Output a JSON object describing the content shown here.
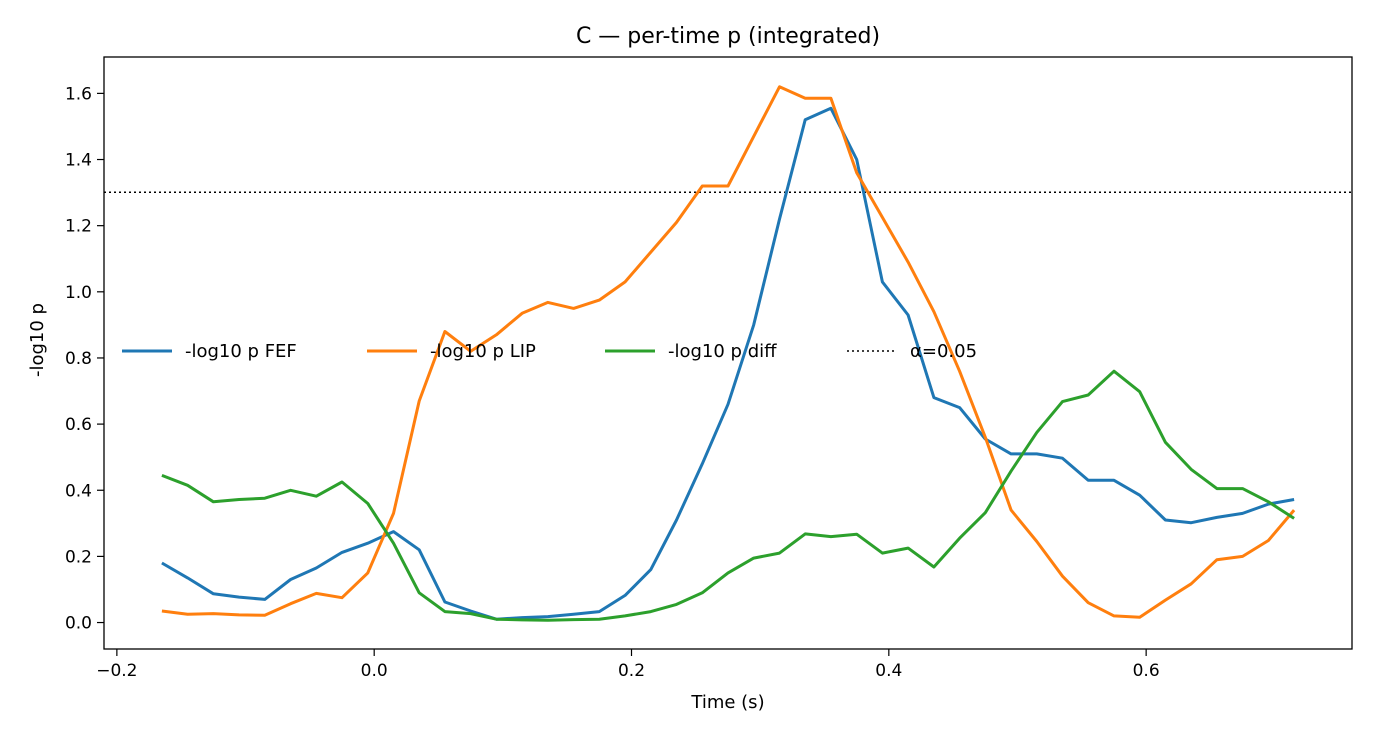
{
  "chart_data": {
    "type": "line",
    "title": "C — per-time p (integrated)",
    "xlabel": "Time (s)",
    "ylabel": "-log10 p",
    "xlim": [
      -0.21,
      0.76
    ],
    "ylim": [
      -0.08,
      1.71
    ],
    "xticks": [
      -0.2,
      0.0,
      0.2,
      0.4,
      0.6
    ],
    "xtick_labels": [
      "−0.2",
      "0.0",
      "0.2",
      "0.4",
      "0.6"
    ],
    "yticks": [
      0.0,
      0.2,
      0.4,
      0.6,
      0.8,
      1.0,
      1.2,
      1.4,
      1.6
    ],
    "ytick_labels": [
      "0.0",
      "0.2",
      "0.4",
      "0.6",
      "0.8",
      "1.0",
      "1.2",
      "1.4",
      "1.6"
    ],
    "grid": false,
    "legend_position": "center-left",
    "reference_line": {
      "y": 1.30103,
      "label": "α=0.05",
      "style": "dotted",
      "color": "#000000"
    },
    "x": [
      -0.165,
      -0.145,
      -0.125,
      -0.105,
      -0.085,
      -0.065,
      -0.045,
      -0.025,
      -0.005,
      0.015,
      0.035,
      0.055,
      0.075,
      0.095,
      0.115,
      0.135,
      0.155,
      0.175,
      0.195,
      0.215,
      0.235,
      0.255,
      0.275,
      0.295,
      0.315,
      0.335,
      0.355,
      0.375,
      0.395,
      0.415,
      0.435,
      0.455,
      0.475,
      0.495,
      0.515,
      0.535,
      0.555,
      0.575,
      0.595,
      0.615,
      0.635,
      0.655,
      0.675,
      0.695,
      0.715
    ],
    "series": [
      {
        "name": "-log10 p FEF",
        "color": "#1f77b4",
        "values": [
          0.18,
          0.135,
          0.087,
          0.077,
          0.07,
          0.13,
          0.165,
          0.212,
          0.24,
          0.275,
          0.22,
          0.062,
          0.035,
          0.01,
          0.015,
          0.018,
          0.025,
          0.033,
          0.082,
          0.16,
          0.31,
          0.48,
          0.66,
          0.9,
          1.22,
          1.52,
          1.555,
          1.4,
          1.03,
          0.93,
          0.68,
          0.65,
          0.555,
          0.51,
          0.51,
          0.497,
          0.43,
          0.43,
          0.385,
          0.31,
          0.302,
          0.318,
          0.33,
          0.358,
          0.372
        ]
      },
      {
        "name": "-log10 p LIP",
        "color": "#ff7f0e",
        "values": [
          0.035,
          0.025,
          0.027,
          0.023,
          0.022,
          0.057,
          0.088,
          0.075,
          0.15,
          0.33,
          0.67,
          0.88,
          0.82,
          0.87,
          0.935,
          0.968,
          0.95,
          0.975,
          1.03,
          1.12,
          1.21,
          1.32,
          1.32,
          1.47,
          1.62,
          1.585,
          1.585,
          1.36,
          1.225,
          1.09,
          0.94,
          0.76,
          0.56,
          0.34,
          0.245,
          0.14,
          0.06,
          0.02,
          0.016,
          0.068,
          0.117,
          0.19,
          0.2,
          0.248,
          0.34
        ]
      },
      {
        "name": "-log10 p diff",
        "color": "#2ca02c",
        "values": [
          0.445,
          0.415,
          0.365,
          0.372,
          0.376,
          0.4,
          0.382,
          0.425,
          0.36,
          0.24,
          0.09,
          0.033,
          0.027,
          0.01,
          0.008,
          0.007,
          0.009,
          0.01,
          0.02,
          0.033,
          0.055,
          0.09,
          0.15,
          0.195,
          0.21,
          0.268,
          0.26,
          0.267,
          0.21,
          0.225,
          0.168,
          0.255,
          0.332,
          0.458,
          0.575,
          0.668,
          0.688,
          0.76,
          0.698,
          0.545,
          0.463,
          0.405,
          0.405,
          0.365,
          0.315
        ]
      }
    ]
  }
}
